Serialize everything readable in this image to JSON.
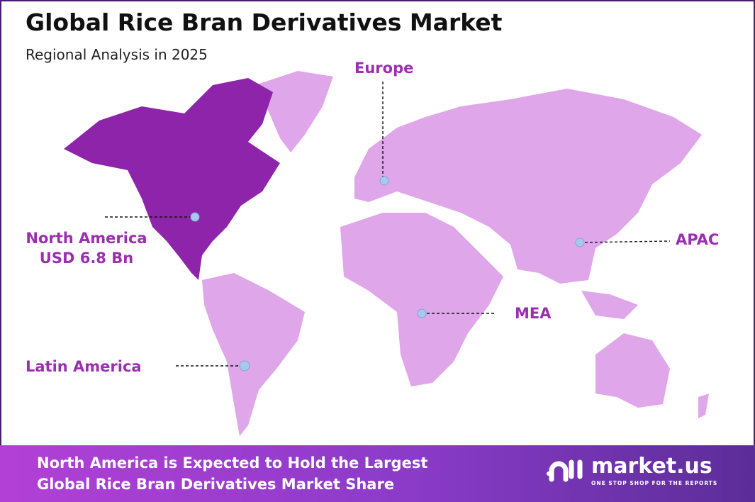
{
  "header": {
    "title": "Global Rice Bran Derivatives Market",
    "subtitle": "Regional Analysis in 2025"
  },
  "colors": {
    "highlight_region": "#8e24aa",
    "other_regions": "#dfa6ea",
    "label": "#9b2fb0",
    "marker": "#a9c8f0"
  },
  "regions": [
    {
      "name": "North America",
      "value": "USD 6.8 Bn",
      "highlighted": true
    },
    {
      "name": "Europe"
    },
    {
      "name": "APAC"
    },
    {
      "name": "MEA"
    },
    {
      "name": "Latin America"
    }
  ],
  "banner": {
    "line1": "North America is Expected to Hold the Largest",
    "line2": "Global Rice Bran Derivatives Market Share"
  },
  "logo": {
    "name": "market.us",
    "tagline": "ONE STOP SHOP FOR THE REPORTS"
  }
}
